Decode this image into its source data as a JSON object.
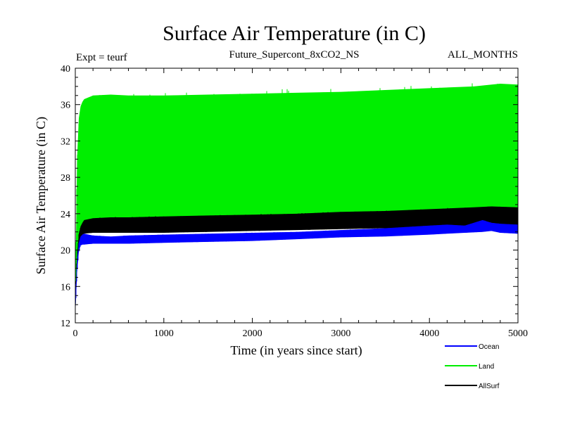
{
  "chart_data": {
    "type": "line",
    "title": "Surface Air Temperature (in C)",
    "subtitle_left": "Expt = teurf",
    "subtitle_center": "Future_Supercont_8xCO2_NS",
    "subtitle_right": "ALL_MONTHS",
    "xlabel": "Time (in years since start)",
    "ylabel": "Surface Air Temperature (in C)",
    "xlim": [
      0,
      5000
    ],
    "ylim": [
      12,
      40
    ],
    "x_ticks": [
      0,
      1000,
      2000,
      3000,
      4000,
      5000
    ],
    "y_ticks": [
      12,
      16,
      20,
      24,
      28,
      32,
      36,
      40
    ],
    "grid": false,
    "legend_placement": "bottom-right",
    "series": [
      {
        "name": "Ocean",
        "color": "#0000ff",
        "band": true,
        "x": [
          0,
          20,
          40,
          60,
          80,
          100,
          200,
          400,
          600,
          1000,
          1500,
          2000,
          2500,
          3000,
          3500,
          4000,
          4200,
          4400,
          4600,
          4700,
          4800,
          5000
        ],
        "low": [
          12.8,
          17.5,
          19.8,
          20.5,
          20.6,
          20.6,
          20.7,
          20.7,
          20.7,
          20.8,
          20.9,
          21.0,
          21.2,
          21.4,
          21.5,
          21.7,
          21.8,
          21.9,
          22.0,
          22.1,
          21.9,
          21.8
        ],
        "high": [
          14.5,
          19.0,
          20.8,
          21.5,
          21.7,
          21.8,
          21.6,
          21.5,
          21.6,
          21.7,
          21.8,
          21.9,
          22.0,
          22.2,
          22.4,
          22.7,
          22.8,
          22.7,
          23.3,
          23.0,
          22.9,
          22.8
        ]
      },
      {
        "name": "Land",
        "color": "#00ee00",
        "band": true,
        "x": [
          0,
          20,
          40,
          60,
          80,
          100,
          200,
          400,
          600,
          1000,
          1500,
          2000,
          2500,
          3000,
          3500,
          4000,
          4500,
          4800,
          5000
        ],
        "low": [
          13.0,
          18.0,
          20.5,
          21.5,
          22.0,
          22.3,
          22.5,
          22.6,
          22.6,
          22.7,
          22.8,
          22.9,
          23.0,
          23.1,
          23.2,
          23.4,
          23.5,
          23.6,
          23.6
        ],
        "high": [
          15.0,
          30.0,
          34.5,
          35.8,
          36.3,
          36.6,
          37.0,
          37.1,
          37.0,
          37.0,
          37.1,
          37.2,
          37.3,
          37.4,
          37.6,
          37.8,
          38.0,
          38.3,
          38.2
        ]
      },
      {
        "name": "AllSurf",
        "color": "#000000",
        "band": true,
        "x": [
          0,
          20,
          40,
          60,
          80,
          100,
          200,
          400,
          600,
          1000,
          1500,
          2000,
          2500,
          3000,
          3500,
          4000,
          4500,
          4700,
          5000
        ],
        "low": [
          12.9,
          17.8,
          20.3,
          21.3,
          21.7,
          21.8,
          21.9,
          21.9,
          21.9,
          21.9,
          22.0,
          22.1,
          22.2,
          22.3,
          22.4,
          22.5,
          22.6,
          22.7,
          22.7
        ],
        "high": [
          14.8,
          19.5,
          21.8,
          22.6,
          23.0,
          23.3,
          23.5,
          23.6,
          23.6,
          23.7,
          23.8,
          23.9,
          24.0,
          24.2,
          24.3,
          24.5,
          24.7,
          24.8,
          24.7
        ]
      }
    ]
  }
}
